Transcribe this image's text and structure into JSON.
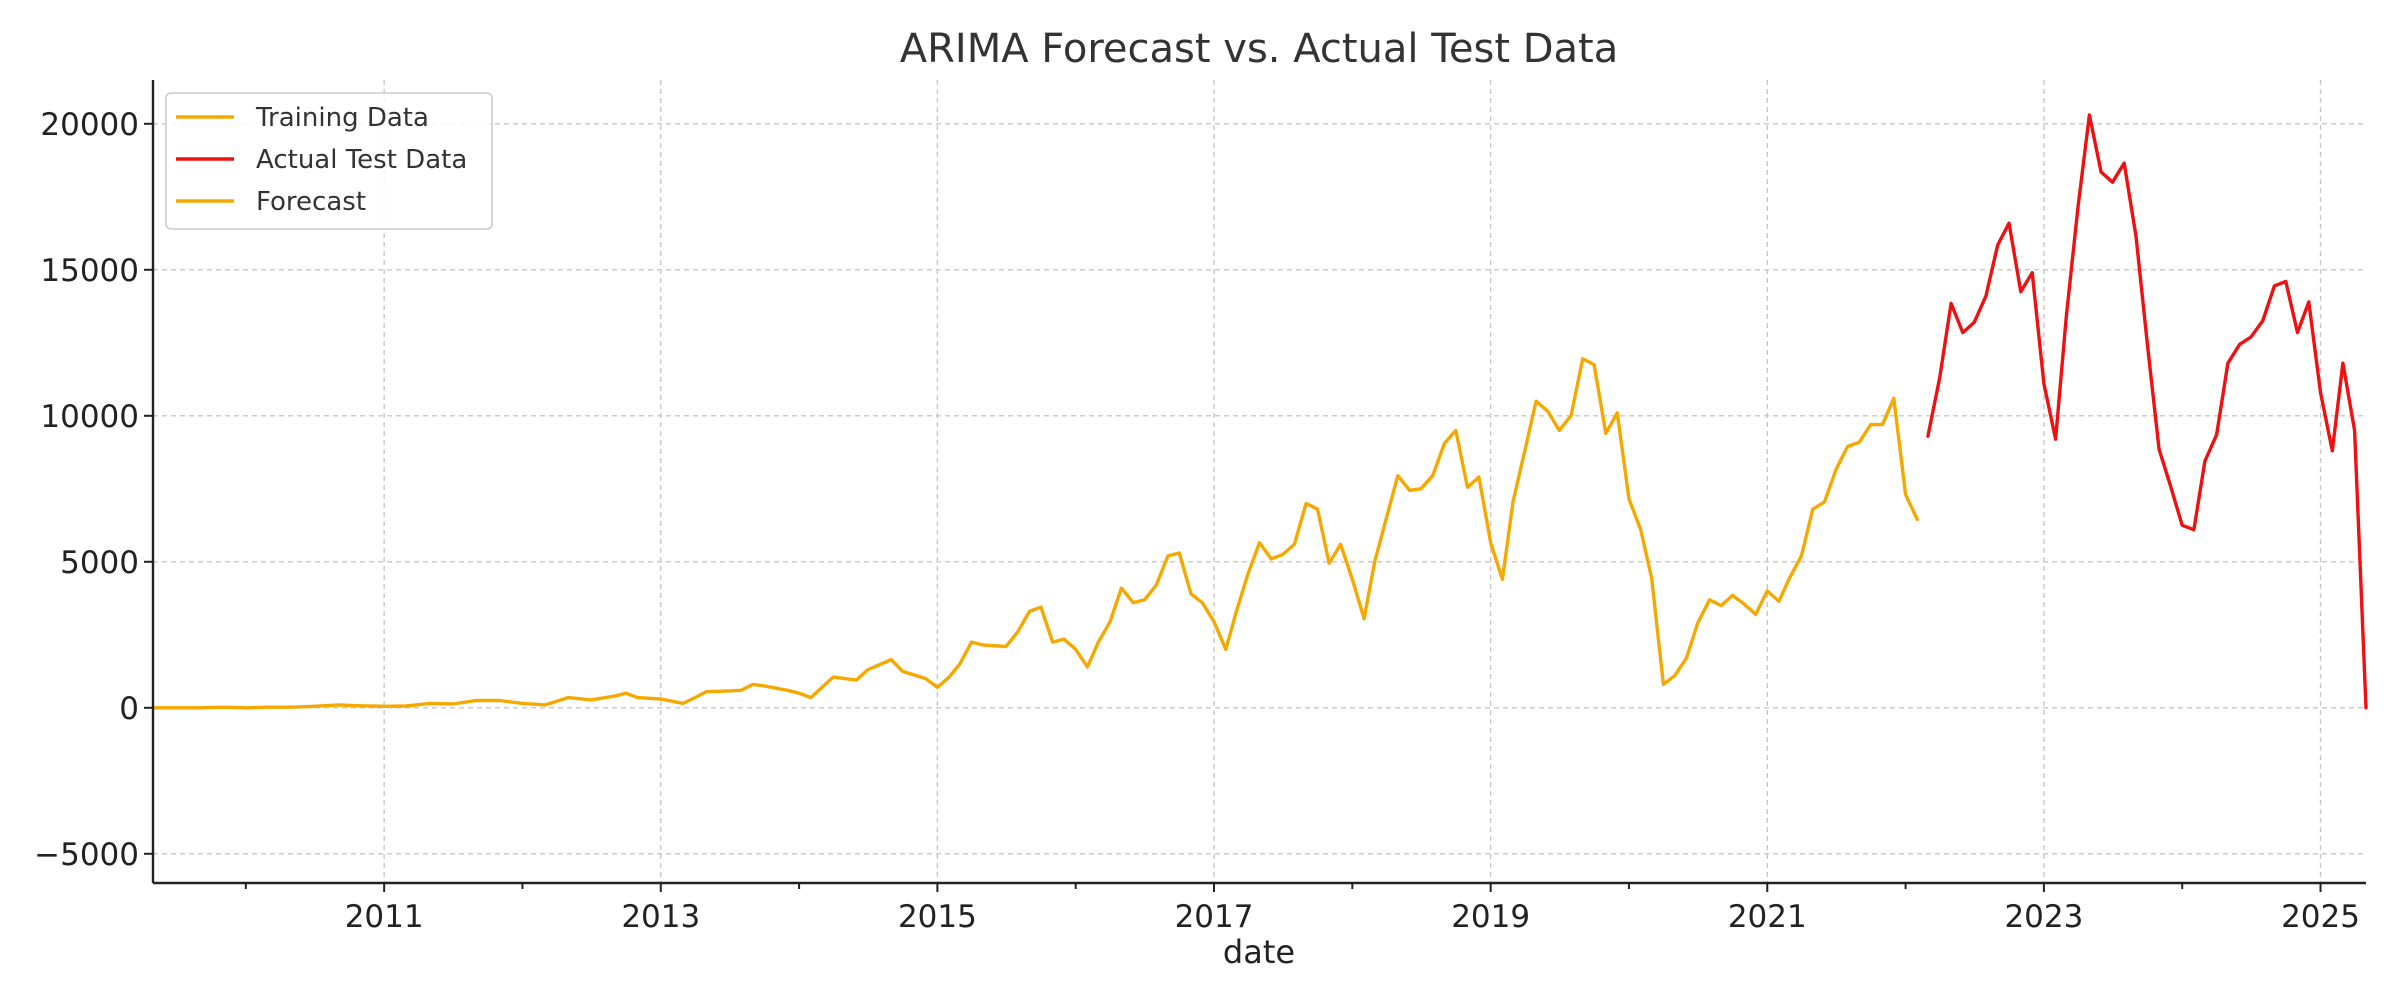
{
  "chart_data": {
    "type": "line",
    "title": "ARIMA Forecast vs. Actual Test Data",
    "xlabel": "date",
    "ylabel": "",
    "xlim": [
      "2009-05-01",
      "2025-05-01"
    ],
    "ylim": [
      -6000,
      21500
    ],
    "x_ticks": [
      "2011",
      "2013",
      "2015",
      "2017",
      "2019",
      "2021",
      "2023",
      "2025"
    ],
    "y_ticks": [
      -5000,
      0,
      5000,
      10000,
      15000,
      20000
    ],
    "y_tick_labels": [
      "−5000",
      "0",
      "5000",
      "10000",
      "15000",
      "20000"
    ],
    "grid": true,
    "legend_position": "top-left",
    "series": [
      {
        "name": "Training Data",
        "color": "#f5a800",
        "x": [
          "2009-05-01",
          "2009-07-01",
          "2009-09-01",
          "2009-11-01",
          "2010-01-01",
          "2010-03-01",
          "2010-05-01",
          "2010-07-01",
          "2010-09-01",
          "2010-11-01",
          "2011-01-01",
          "2011-03-01",
          "2011-05-01",
          "2011-07-01",
          "2011-09-01",
          "2011-11-01",
          "2012-01-01",
          "2012-03-01",
          "2012-05-01",
          "2012-07-01",
          "2012-09-01",
          "2012-10-01",
          "2012-11-01",
          "2013-01-01",
          "2013-03-01",
          "2013-04-01",
          "2013-05-01",
          "2013-07-01",
          "2013-08-01",
          "2013-09-01",
          "2013-10-01",
          "2013-12-01",
          "2014-01-01",
          "2014-02-01",
          "2014-04-01",
          "2014-06-01",
          "2014-07-01",
          "2014-09-01",
          "2014-10-01",
          "2014-12-01",
          "2015-01-01",
          "2015-02-01",
          "2015-03-01",
          "2015-04-01",
          "2015-05-01",
          "2015-07-01",
          "2015-08-01",
          "2015-09-01",
          "2015-10-01",
          "2015-11-01",
          "2015-12-01",
          "2016-01-01",
          "2016-02-01",
          "2016-03-01",
          "2016-04-01",
          "2016-05-01",
          "2016-06-01",
          "2016-07-01",
          "2016-08-01",
          "2016-09-01",
          "2016-10-01",
          "2016-11-01",
          "2016-12-01",
          "2017-01-01",
          "2017-02-01",
          "2017-03-01",
          "2017-04-01",
          "2017-05-01",
          "2017-06-01",
          "2017-07-01",
          "2017-08-01",
          "2017-09-01",
          "2017-10-01",
          "2017-11-01",
          "2017-12-01",
          "2018-01-01",
          "2018-02-01",
          "2018-03-01",
          "2018-04-01",
          "2018-05-01",
          "2018-06-01",
          "2018-07-01",
          "2018-08-01",
          "2018-09-01",
          "2018-10-01",
          "2018-11-01",
          "2018-12-01",
          "2019-01-01",
          "2019-02-01",
          "2019-03-01",
          "2019-04-01",
          "2019-05-01",
          "2019-06-01",
          "2019-07-01",
          "2019-08-01",
          "2019-09-01",
          "2019-10-01",
          "2019-11-01",
          "2019-12-01",
          "2020-01-01",
          "2020-02-01",
          "2020-03-01",
          "2020-04-01",
          "2020-05-01",
          "2020-06-01",
          "2020-07-01",
          "2020-08-01",
          "2020-09-01",
          "2020-10-01",
          "2020-11-01",
          "2020-12-01",
          "2021-01-01",
          "2021-02-01",
          "2021-03-01",
          "2021-04-01",
          "2021-05-01",
          "2021-06-01",
          "2021-07-01",
          "2021-08-01",
          "2021-09-01",
          "2021-10-01",
          "2021-11-01",
          "2021-12-01",
          "2022-01-01",
          "2022-02-01"
        ],
        "y": [
          0,
          0,
          0,
          20,
          0,
          20,
          20,
          50,
          100,
          70,
          50,
          60,
          150,
          130,
          250,
          250,
          150,
          100,
          350,
          270,
          400,
          500,
          350,
          300,
          150,
          350,
          550,
          580,
          600,
          800,
          750,
          600,
          500,
          350,
          1050,
          950,
          1300,
          1650,
          1250,
          1000,
          700,
          1050,
          1500,
          2250,
          2150,
          2100,
          2600,
          3300,
          3450,
          2250,
          2350,
          2000,
          1400,
          2250,
          2950,
          4100,
          3600,
          3700,
          4200,
          5200,
          5300,
          3900,
          3600,
          2950,
          2000,
          3300,
          4600,
          5650,
          5100,
          5250,
          5600,
          7000,
          6800,
          4950,
          5600,
          4400,
          3050,
          5000,
          6500,
          7950,
          7450,
          7500,
          7950,
          9050,
          9500,
          7550,
          7900,
          5650,
          4400,
          7050,
          8800,
          10500,
          10150,
          9500,
          10000,
          11950,
          11750,
          9400,
          10100,
          7150,
          6100,
          4450,
          800,
          1100,
          1700,
          2900,
          3700,
          3500,
          3850,
          3550,
          3200,
          4000,
          3650,
          4450,
          5200,
          6800,
          7050,
          8150,
          8950,
          9100,
          9700,
          9700,
          10600,
          7300,
          6450
        ]
      },
      {
        "name": "Actual Test Data",
        "color": "#ee1111",
        "x": [
          "2022-03-01",
          "2022-04-01",
          "2022-05-01",
          "2022-06-01",
          "2022-07-01",
          "2022-08-01",
          "2022-09-01",
          "2022-10-01",
          "2022-11-01",
          "2022-12-01",
          "2023-01-01",
          "2023-02-01",
          "2023-03-01",
          "2023-04-01",
          "2023-05-01",
          "2023-06-01",
          "2023-07-01",
          "2023-08-01",
          "2023-09-01",
          "2023-10-01",
          "2023-11-01",
          "2023-12-01",
          "2024-01-01",
          "2024-02-01",
          "2024-03-01",
          "2024-04-01",
          "2024-05-01",
          "2024-06-01",
          "2024-07-01",
          "2024-08-01",
          "2024-09-01",
          "2024-10-01",
          "2024-11-01",
          "2024-12-01",
          "2025-01-01",
          "2025-02-01",
          "2025-03-01",
          "2025-04-01",
          "2025-05-01"
        ],
        "y": [
          9300,
          11300,
          13850,
          12850,
          13200,
          14100,
          15850,
          16600,
          14250,
          14900,
          11100,
          9200,
          13400,
          17150,
          20300,
          18350,
          18000,
          18650,
          16150,
          12450,
          8850,
          7600,
          6250,
          6100,
          8450,
          9350,
          11800,
          12450,
          12700,
          13250,
          14450,
          14600,
          12850,
          13900,
          10800,
          8800,
          11800,
          9500,
          0
        ]
      },
      {
        "name": "Forecast",
        "color": "#f5a800",
        "x": [],
        "y": []
      }
    ]
  }
}
